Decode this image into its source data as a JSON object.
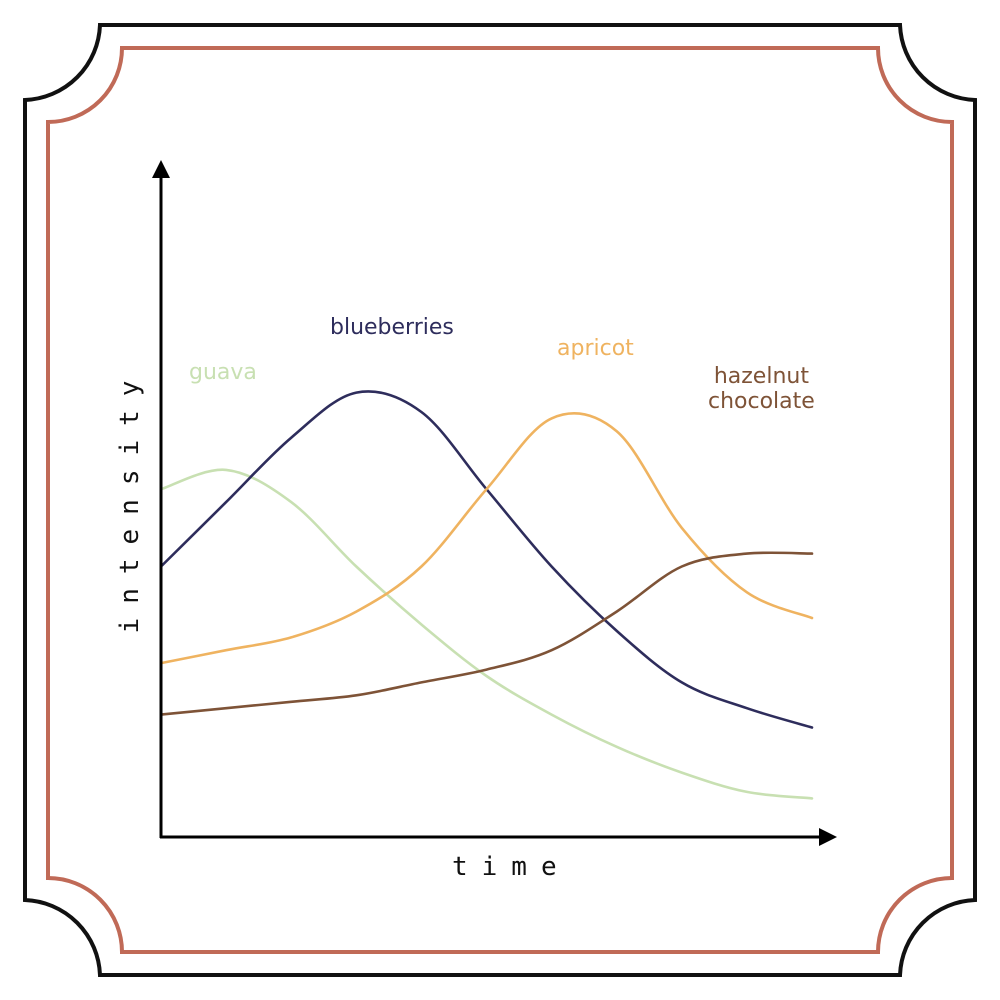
{
  "chart_data": {
    "type": "line",
    "xlabel": "time",
    "ylabel": "intensity",
    "grid": false,
    "legend": "inline labels",
    "x": [
      0,
      0.1,
      0.2,
      0.3,
      0.4,
      0.5,
      0.6,
      0.7,
      0.8,
      0.9,
      1.0
    ],
    "xlim": [
      0,
      1
    ],
    "ylim": [
      0,
      1
    ],
    "series": [
      {
        "name": "guava",
        "color": "#c8e0b2",
        "values": [
          0.54,
          0.57,
          0.52,
          0.42,
          0.33,
          0.25,
          0.19,
          0.14,
          0.1,
          0.07,
          0.06
        ]
      },
      {
        "name": "blueberries",
        "color": "#2e2d5c",
        "values": [
          0.42,
          0.52,
          0.62,
          0.69,
          0.66,
          0.54,
          0.42,
          0.32,
          0.24,
          0.2,
          0.17
        ]
      },
      {
        "name": "apricot",
        "color": "#efb360",
        "values": [
          0.27,
          0.29,
          0.31,
          0.35,
          0.42,
          0.54,
          0.65,
          0.63,
          0.48,
          0.38,
          0.34
        ]
      },
      {
        "name": "hazelnut chocolate",
        "label_lines": [
          "hazelnut",
          "chocolate"
        ],
        "color": "#7e5337",
        "values": [
          0.19,
          0.2,
          0.21,
          0.22,
          0.24,
          0.26,
          0.29,
          0.35,
          0.42,
          0.44,
          0.44
        ]
      }
    ]
  },
  "frame": {
    "outer_color": "#111111",
    "inner_color": "#c06a57"
  }
}
